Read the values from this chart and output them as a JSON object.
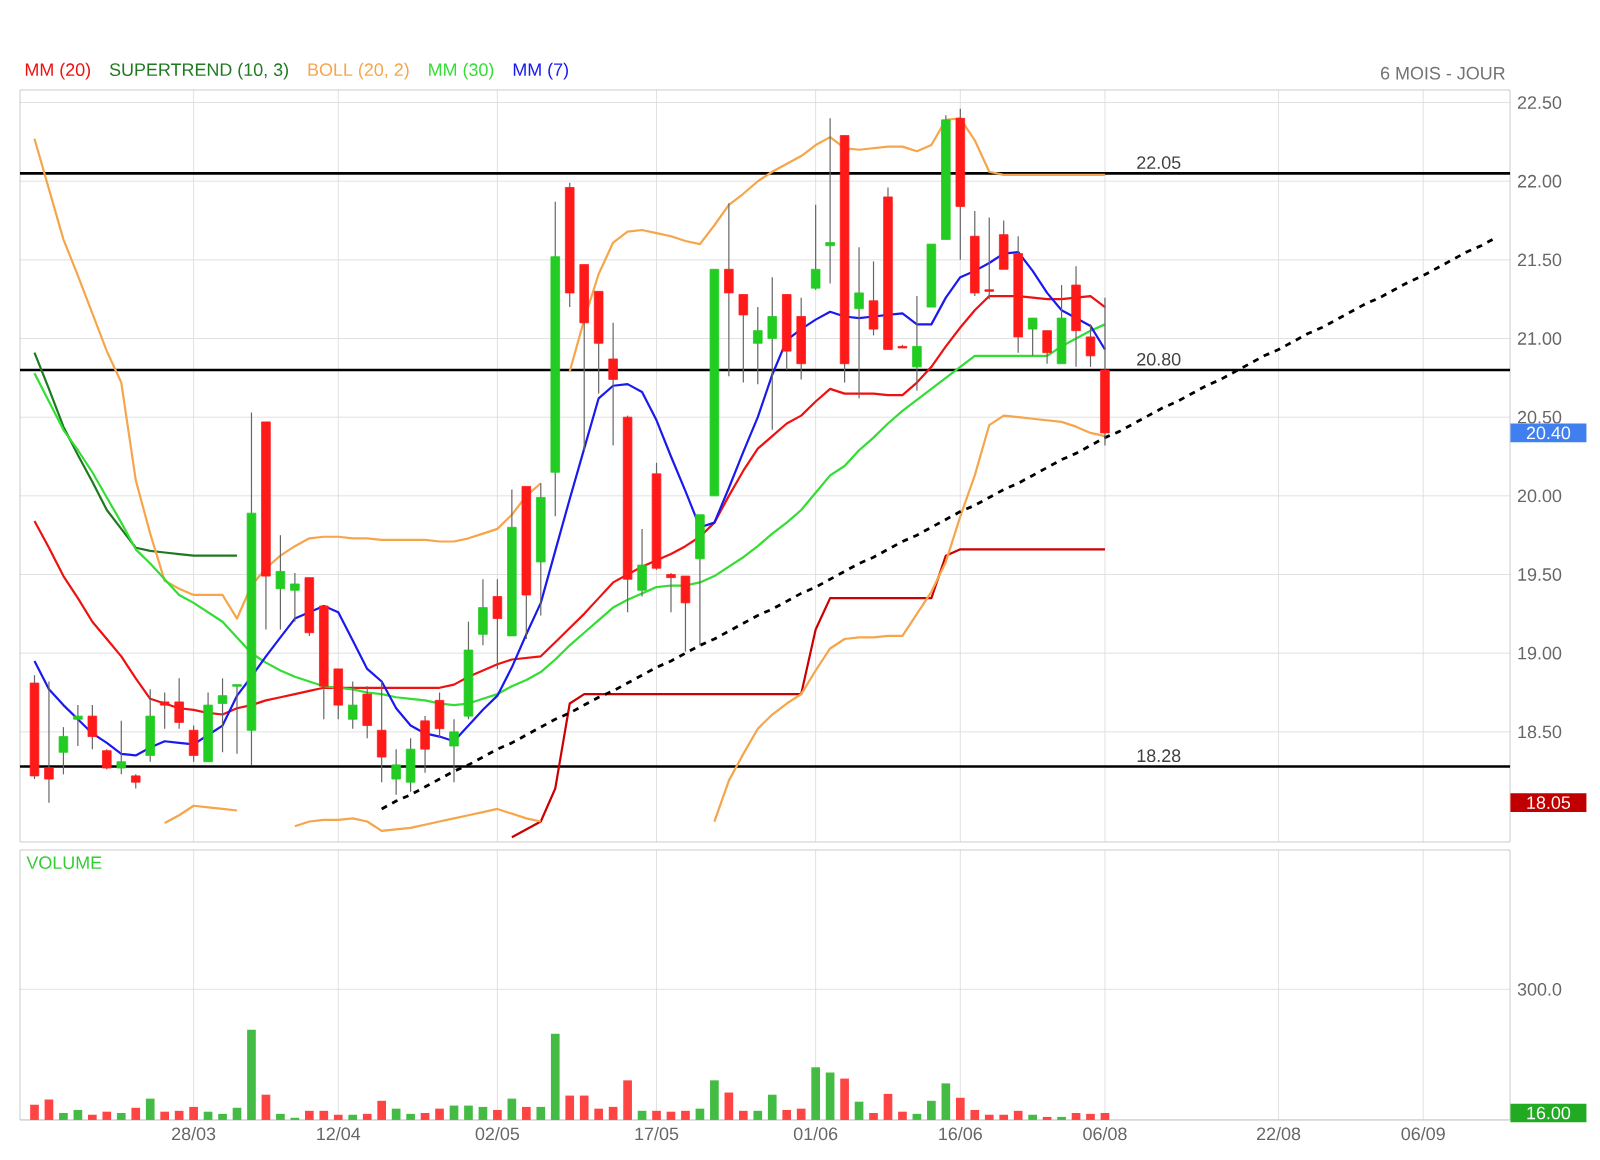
{
  "chart_data": [
    {
      "type": "candlestick",
      "subtitle": "6 MOIS - JOUR",
      "categories": [
        null,
        null,
        null,
        null,
        null,
        null,
        null,
        null,
        null,
        null,
        null,
        null,
        null,
        null,
        null,
        null,
        null,
        null,
        null,
        null,
        null,
        null,
        null,
        null,
        null,
        null,
        null,
        null,
        null,
        null,
        null,
        null,
        null,
        null,
        null,
        null,
        null,
        null,
        null,
        null,
        null,
        null,
        null,
        null,
        null,
        null,
        null,
        null,
        null,
        null,
        null,
        null,
        null,
        null,
        null,
        null,
        null,
        null,
        null,
        null,
        null,
        null,
        null,
        null,
        null,
        null,
        null,
        null,
        null,
        null,
        null,
        null,
        null,
        null,
        null,
        null,
        null,
        null,
        null,
        null,
        null,
        null,
        null,
        null,
        null,
        null,
        null,
        null,
        null,
        null,
        null,
        null,
        null,
        null,
        null,
        null,
        null,
        null,
        null,
        null,
        null,
        null
      ],
      "ohlc": [
        [
          18.81,
          18.86,
          18.2,
          18.22
        ],
        [
          18.27,
          18.82,
          18.05,
          18.2
        ],
        [
          18.37,
          18.53,
          18.23,
          18.47
        ],
        [
          18.58,
          18.67,
          18.41,
          18.6
        ],
        [
          18.6,
          18.67,
          18.39,
          18.47
        ],
        [
          18.38,
          18.39,
          18.26,
          18.27
        ],
        [
          18.27,
          18.57,
          18.23,
          18.31
        ],
        [
          18.22,
          18.23,
          18.14,
          18.18
        ],
        [
          18.35,
          18.77,
          18.31,
          18.6
        ],
        [
          18.69,
          18.75,
          18.52,
          18.67
        ],
        [
          18.69,
          18.84,
          18.52,
          18.56
        ],
        [
          18.51,
          18.54,
          18.31,
          18.35
        ],
        [
          18.31,
          18.75,
          18.31,
          18.67
        ],
        [
          18.68,
          18.84,
          18.37,
          18.73
        ],
        [
          18.79,
          18.8,
          18.36,
          18.8
        ],
        [
          18.51,
          20.53,
          18.29,
          19.89
        ],
        [
          20.47,
          20.47,
          19.15,
          19.49
        ],
        [
          19.41,
          19.75,
          19.15,
          19.52
        ],
        [
          19.4,
          19.51,
          19.2,
          19.44
        ],
        [
          19.48,
          19.48,
          19.11,
          19.13
        ],
        [
          19.3,
          19.3,
          18.58,
          18.79
        ],
        [
          18.9,
          18.9,
          18.58,
          18.67
        ],
        [
          18.58,
          18.82,
          18.52,
          18.67
        ],
        [
          18.74,
          18.79,
          18.46,
          18.54
        ],
        [
          18.51,
          18.82,
          18.18,
          18.34
        ],
        [
          18.2,
          18.39,
          18.1,
          18.29
        ],
        [
          18.18,
          18.46,
          18.12,
          18.39
        ],
        [
          18.57,
          18.6,
          18.24,
          18.39
        ],
        [
          18.7,
          18.75,
          18.46,
          18.52
        ],
        [
          18.41,
          18.58,
          18.18,
          18.5
        ],
        [
          18.6,
          19.2,
          18.58,
          19.02
        ],
        [
          19.12,
          19.47,
          19.05,
          19.29
        ],
        [
          19.36,
          19.47,
          18.9,
          19.22
        ],
        [
          19.11,
          20.04,
          19.11,
          19.8
        ],
        [
          20.06,
          20.06,
          19.09,
          19.37
        ],
        [
          19.58,
          20.08,
          19.24,
          19.99
        ],
        [
          20.15,
          21.87,
          19.87,
          21.52
        ],
        [
          21.96,
          21.99,
          21.2,
          21.29
        ],
        [
          21.47,
          21.47,
          20.29,
          21.1
        ],
        [
          21.3,
          21.3,
          20.65,
          20.97
        ],
        [
          20.87,
          21.1,
          20.32,
          20.74
        ],
        [
          20.5,
          20.51,
          19.26,
          19.47
        ],
        [
          19.4,
          19.79,
          19.36,
          19.56
        ],
        [
          20.14,
          20.21,
          19.53,
          19.54
        ],
        [
          19.5,
          19.51,
          19.26,
          19.48
        ],
        [
          19.49,
          19.49,
          19.01,
          19.32
        ],
        [
          19.6,
          19.88,
          19.05,
          19.88
        ],
        [
          20.0,
          21.44,
          20.0,
          21.44
        ],
        [
          21.44,
          21.86,
          20.76,
          21.29
        ],
        [
          21.28,
          21.28,
          20.72,
          21.15
        ],
        [
          20.97,
          21.2,
          20.71,
          21.05
        ],
        [
          21.0,
          21.39,
          20.42,
          21.14
        ],
        [
          21.28,
          21.28,
          20.8,
          20.92
        ],
        [
          21.14,
          21.26,
          20.74,
          20.84
        ],
        [
          21.32,
          21.85,
          21.31,
          21.44
        ],
        [
          21.59,
          22.4,
          21.35,
          21.61
        ],
        [
          22.29,
          22.29,
          20.72,
          20.84
        ],
        [
          21.19,
          21.58,
          20.62,
          21.29
        ],
        [
          21.24,
          21.49,
          21.02,
          21.06
        ],
        [
          21.9,
          21.96,
          20.93,
          20.93
        ],
        [
          20.95,
          20.96,
          20.94,
          20.94
        ],
        [
          20.82,
          21.27,
          20.67,
          20.95
        ],
        [
          21.2,
          21.6,
          21.2,
          21.6
        ],
        [
          21.63,
          22.42,
          21.63,
          22.39
        ],
        [
          22.4,
          22.46,
          21.5,
          21.84
        ],
        [
          21.65,
          21.81,
          21.27,
          21.29
        ],
        [
          21.31,
          21.77,
          21.25,
          21.3
        ],
        [
          21.66,
          21.75,
          21.44,
          21.44
        ],
        [
          21.54,
          21.65,
          20.91,
          21.01
        ],
        [
          21.06,
          21.13,
          20.89,
          21.13
        ],
        [
          21.05,
          21.05,
          20.84,
          20.91
        ],
        [
          20.84,
          21.34,
          20.84,
          21.13
        ],
        [
          21.34,
          21.46,
          20.82,
          21.05
        ],
        [
          21.01,
          21.09,
          20.82,
          20.89
        ],
        [
          20.8,
          21.26,
          20.32,
          20.4
        ],
        null,
        null,
        null,
        null,
        null,
        null,
        null,
        null,
        null,
        null,
        null,
        null,
        null,
        null,
        null,
        null,
        null,
        null,
        null,
        null,
        null,
        null,
        null,
        null,
        null,
        null,
        null
      ],
      "colors": [
        "#ff1a1a",
        "#ff1a1a",
        "#22cc22",
        "#22cc22",
        "#ff1a1a",
        "#ff1a1a",
        "#22cc22",
        "#ff1a1a",
        "#22cc22",
        "#ff1a1a",
        "#ff1a1a",
        "#ff1a1a",
        "#22cc22",
        "#22cc22",
        "#22cc22",
        "#22cc22",
        "#ff1a1a",
        "#22cc22",
        "#22cc22",
        "#ff1a1a",
        "#ff1a1a",
        "#ff1a1a",
        "#22cc22",
        "#ff1a1a",
        "#ff1a1a",
        "#22cc22",
        "#22cc22",
        "#ff1a1a",
        "#ff1a1a",
        "#22cc22",
        "#22cc22",
        "#22cc22",
        "#ff1a1a",
        "#22cc22",
        "#ff1a1a",
        "#22cc22",
        "#22cc22",
        "#ff1a1a",
        "#ff1a1a",
        "#ff1a1a",
        "#ff1a1a",
        "#ff1a1a",
        "#22cc22",
        "#ff1a1a",
        "#ff1a1a",
        "#ff1a1a",
        "#22cc22",
        "#22cc22",
        "#ff1a1a",
        "#ff1a1a",
        "#22cc22",
        "#22cc22",
        "#ff1a1a",
        "#ff1a1a",
        "#22cc22",
        "#22cc22",
        "#ff1a1a",
        "#22cc22",
        "#ff1a1a",
        "#ff1a1a",
        "#ff1a1a",
        "#22cc22",
        "#22cc22",
        "#22cc22",
        "#ff1a1a",
        "#ff1a1a",
        "#ff1a1a",
        "#ff1a1a",
        "#ff1a1a",
        "#22cc22",
        "#ff1a1a",
        "#22cc22",
        "#ff1a1a",
        "#ff1a1a",
        "#ff1a1a",
        null,
        null,
        null,
        null,
        null,
        null,
        null,
        null,
        null,
        null,
        null,
        null,
        null,
        null,
        null,
        null,
        null,
        null,
        null,
        null,
        null,
        null,
        null,
        null,
        null,
        null,
        null
      ],
      "series": [
        {
          "type": "line",
          "name": "MM (20)",
          "color": "#ee1111",
          "values": [
            19.84,
            19.67,
            19.49,
            19.35,
            19.2,
            19.09,
            18.98,
            18.84,
            18.71,
            18.68,
            18.65,
            18.64,
            18.62,
            18.61,
            18.65,
            18.67,
            18.7,
            18.72,
            18.74,
            18.76,
            18.78,
            18.78,
            18.78,
            18.78,
            18.78,
            18.78,
            18.78,
            18.78,
            18.78,
            18.8,
            18.85,
            18.89,
            18.93,
            18.96,
            18.97,
            18.98,
            19.07,
            19.16,
            19.25,
            19.35,
            19.45,
            19.5,
            19.55,
            19.59,
            19.63,
            19.68,
            19.74,
            19.83,
            20.0,
            20.16,
            20.3,
            20.38,
            20.46,
            20.51,
            20.6,
            20.68,
            20.65,
            20.65,
            20.65,
            20.64,
            20.64,
            20.72,
            20.82,
            20.95,
            21.07,
            21.18,
            21.27,
            21.27,
            21.27,
            21.26,
            21.25,
            21.25,
            21.26,
            21.27,
            21.2,
            null,
            null,
            null,
            null,
            null,
            null,
            null,
            null,
            null,
            null,
            null,
            null,
            null,
            null,
            null,
            null,
            null,
            null,
            null,
            null,
            null,
            null,
            null,
            null,
            null,
            null,
            null
          ]
        },
        {
          "type": "line",
          "name": "SUPERTREND (10, 3)",
          "color": "#1e7a1e",
          "values": [
            20.91,
            20.68,
            20.44,
            20.26,
            20.09,
            19.91,
            19.79,
            19.67,
            19.65,
            19.64,
            19.63,
            19.62,
            19.62,
            19.62,
            19.62,
            null,
            null,
            null,
            null,
            null,
            null,
            null,
            null,
            null,
            null,
            null,
            null,
            null,
            null,
            null,
            null,
            null,
            null,
            null,
            null,
            null,
            null,
            null,
            null,
            null,
            null,
            null,
            null,
            null,
            null,
            null,
            null,
            null,
            null,
            null,
            null,
            null,
            null,
            null,
            null,
            null,
            null,
            null,
            null,
            null,
            null,
            null,
            null,
            null,
            null,
            null,
            null,
            null,
            null,
            null,
            null,
            null,
            null,
            null,
            null,
            null,
            null,
            null,
            null,
            null,
            null,
            null,
            null,
            null,
            null,
            null,
            null,
            null,
            null,
            null,
            null,
            null,
            null,
            null,
            null,
            null,
            null,
            null,
            null,
            null,
            null,
            null
          ]
        },
        {
          "type": "line",
          "name": "BOLL (20, 2)",
          "color": "#f7a54a",
          "values": [
            22.27,
            21.95,
            21.63,
            21.4,
            21.16,
            20.92,
            20.72,
            20.1,
            19.76,
            19.46,
            19.41,
            19.37,
            19.37,
            19.37,
            19.22,
            19.43,
            19.54,
            19.62,
            19.68,
            19.73,
            19.74,
            19.74,
            19.73,
            19.73,
            19.72,
            19.72,
            19.72,
            19.72,
            19.71,
            19.71,
            19.73,
            19.76,
            19.79,
            19.88,
            20.0,
            20.08,
            null,
            20.79,
            21.12,
            21.41,
            21.61,
            21.68,
            21.69,
            21.67,
            21.65,
            21.62,
            21.6,
            21.72,
            21.85,
            21.92,
            22.0,
            22.06,
            22.11,
            22.16,
            22.23,
            22.28,
            22.21,
            22.2,
            22.21,
            22.22,
            22.22,
            22.19,
            22.23,
            22.39,
            22.4,
            22.26,
            22.06,
            22.04,
            22.04,
            22.04,
            22.04,
            22.04,
            22.04,
            22.04,
            22.04,
            null,
            null,
            null,
            null,
            null,
            null,
            null,
            null,
            null,
            null,
            null,
            null,
            null,
            null,
            null,
            null,
            null,
            null,
            null,
            null,
            null,
            null,
            null,
            null,
            null,
            null,
            null
          ]
        },
        {
          "type": "line",
          "name": "MM (30)",
          "color": "#33dd33",
          "values": [
            20.78,
            20.6,
            20.42,
            20.29,
            20.15,
            19.99,
            19.83,
            19.66,
            19.57,
            19.47,
            19.37,
            19.32,
            19.26,
            19.2,
            19.1,
            19.0,
            18.94,
            18.89,
            18.85,
            18.82,
            18.79,
            18.78,
            18.77,
            18.75,
            18.74,
            18.72,
            18.71,
            18.7,
            18.68,
            18.67,
            18.68,
            18.71,
            18.74,
            18.79,
            18.83,
            18.88,
            18.96,
            19.05,
            19.13,
            19.21,
            19.29,
            19.34,
            19.38,
            19.42,
            19.43,
            19.43,
            19.45,
            19.49,
            19.55,
            19.61,
            19.68,
            19.76,
            19.83,
            19.91,
            20.02,
            20.13,
            20.19,
            20.29,
            20.37,
            20.46,
            20.54,
            20.61,
            20.68,
            20.75,
            20.82,
            20.89,
            20.89,
            20.89,
            20.89,
            20.89,
            20.89,
            20.95,
            21.0,
            21.05,
            21.09,
            null,
            null,
            null,
            null,
            null,
            null,
            null,
            null,
            null,
            null,
            null,
            null,
            null,
            null,
            null,
            null,
            null,
            null,
            null,
            null,
            null,
            null,
            null,
            null,
            null,
            null,
            null
          ]
        },
        {
          "type": "line",
          "name": "MM (7)",
          "color": "#1a1aee",
          "values": [
            18.95,
            18.77,
            18.67,
            18.58,
            18.49,
            18.43,
            18.36,
            18.35,
            18.4,
            18.44,
            18.43,
            18.42,
            18.48,
            18.54,
            18.73,
            18.85,
            18.98,
            19.1,
            19.22,
            19.26,
            19.3,
            19.26,
            19.08,
            18.9,
            18.82,
            18.65,
            18.54,
            18.49,
            18.47,
            18.44,
            18.54,
            18.64,
            18.73,
            18.91,
            19.12,
            19.32,
            19.65,
            19.98,
            20.3,
            20.62,
            20.7,
            20.71,
            20.66,
            20.48,
            20.25,
            20.03,
            19.8,
            19.83,
            20.05,
            20.28,
            20.5,
            20.77,
            20.99,
            21.06,
            21.12,
            21.17,
            21.14,
            21.13,
            21.14,
            21.15,
            21.16,
            21.09,
            21.09,
            21.26,
            21.39,
            21.43,
            21.48,
            21.54,
            21.55,
            21.43,
            21.29,
            21.18,
            21.13,
            21.08,
            20.93,
            null,
            null,
            null,
            null,
            null,
            null,
            null,
            null,
            null,
            null,
            null,
            null,
            null,
            null,
            null,
            null,
            null,
            null,
            null,
            null,
            null,
            null,
            null,
            null,
            null,
            null,
            null
          ]
        },
        {
          "type": "line",
          "color": "#cc0000",
          "values": [
            null,
            null,
            null,
            null,
            null,
            null,
            null,
            null,
            null,
            null,
            null,
            null,
            null,
            null,
            null,
            null,
            null,
            null,
            null,
            null,
            null,
            null,
            null,
            null,
            null,
            null,
            null,
            null,
            null,
            null,
            null,
            null,
            null,
            17.83,
            17.88,
            17.93,
            18.14,
            18.68,
            18.74,
            18.74,
            18.74,
            18.74,
            18.74,
            18.74,
            18.74,
            18.74,
            18.74,
            18.74,
            18.74,
            18.74,
            18.74,
            18.74,
            18.74,
            18.74,
            19.15,
            19.35,
            19.35,
            19.35,
            19.35,
            19.35,
            19.35,
            19.35,
            19.35,
            19.62,
            19.66,
            19.66,
            19.66,
            19.66,
            19.66,
            19.66,
            19.66,
            19.66,
            19.66,
            19.66,
            19.66,
            null,
            null,
            null,
            null,
            null,
            null,
            null,
            null,
            null,
            null,
            null,
            null,
            null,
            null,
            null,
            null,
            null,
            null,
            null,
            null,
            null,
            null,
            null,
            null,
            null,
            null,
            null
          ]
        },
        {
          "type": "line",
          "color": "#f7a54a",
          "values": [
            null,
            null,
            null,
            null,
            null,
            null,
            null,
            null,
            null,
            17.92,
            17.97,
            18.03,
            18.02,
            18.01,
            18.0,
            null,
            null,
            null,
            17.9,
            17.93,
            17.94,
            17.94,
            17.95,
            17.93,
            17.87,
            17.88,
            17.89,
            17.91,
            17.93,
            17.95,
            17.97,
            17.99,
            18.01,
            17.98,
            17.95,
            17.93,
            null,
            null,
            null,
            null,
            null,
            null,
            null,
            null,
            null,
            null,
            null,
            17.93,
            18.19,
            18.36,
            18.52,
            18.61,
            18.68,
            18.74,
            18.89,
            19.03,
            19.09,
            19.1,
            19.1,
            19.11,
            19.11,
            19.25,
            19.39,
            19.58,
            19.87,
            20.13,
            20.45,
            20.51,
            20.5,
            20.49,
            20.48,
            20.47,
            20.44,
            20.4,
            20.38,
            null,
            null,
            null,
            null,
            null,
            null,
            null,
            null,
            null,
            null,
            null,
            null,
            null,
            null,
            null,
            null,
            null,
            null,
            null,
            null,
            null,
            null,
            null,
            null,
            null,
            null,
            null
          ]
        },
        {
          "type": "line",
          "color": "#000000",
          "line_style": "dashed",
          "values": [
            null,
            null,
            null,
            null,
            null,
            null,
            null,
            null,
            null,
            null,
            null,
            null,
            null,
            null,
            null,
            null,
            null,
            null,
            null,
            null,
            null,
            null,
            null,
            null,
            18.01,
            18.06,
            18.1,
            18.15,
            18.2,
            18.25,
            18.29,
            18.34,
            18.39,
            18.43,
            18.48,
            18.53,
            18.58,
            18.62,
            18.67,
            18.72,
            18.76,
            18.81,
            18.86,
            18.91,
            18.95,
            19.0,
            19.05,
            19.09,
            19.14,
            19.19,
            19.24,
            19.28,
            19.33,
            19.38,
            19.42,
            19.47,
            19.52,
            19.57,
            19.61,
            19.66,
            19.71,
            19.75,
            19.8,
            19.85,
            19.9,
            19.94,
            19.99,
            20.04,
            20.08,
            20.13,
            20.18,
            20.23,
            20.27,
            20.32,
            20.37,
            20.41,
            20.46,
            20.51,
            20.56,
            20.6,
            20.65,
            20.7,
            20.74,
            20.79,
            20.84,
            20.89,
            20.93,
            20.98,
            21.03,
            21.07,
            21.12,
            21.17,
            21.22,
            21.26,
            21.31,
            21.36,
            21.4,
            21.45,
            21.5,
            21.55,
            21.59,
            21.64
          ]
        }
      ],
      "ref_lines": [
        {
          "axis": "y",
          "value": 22.05,
          "label": "22.05"
        },
        {
          "axis": "y",
          "value": 20.8,
          "label": "20.80"
        },
        {
          "axis": "y",
          "value": 18.28,
          "label": "18.28"
        }
      ],
      "annotations": [
        "20.40",
        "18.05"
      ],
      "ylim": [
        17.8,
        22.58
      ],
      "yticks": [
        {
          "value": 18.5,
          "label": "18.50"
        },
        {
          "value": 19,
          "label": "19.00"
        },
        {
          "value": 19.5,
          "label": "19.50"
        },
        {
          "value": 20,
          "label": "20.00"
        },
        {
          "value": 20.5,
          "label": "20.50"
        },
        {
          "value": 21,
          "label": "21.00"
        },
        {
          "value": 21.5,
          "label": "21.50"
        },
        {
          "value": 22,
          "label": "22.00"
        },
        {
          "value": 22.5,
          "label": "22.50"
        }
      ],
      "grid": true,
      "legend": "top left",
      "tick_labels": "y"
    },
    {
      "type": "bar",
      "title": "VOLUME",
      "categories": [
        null,
        null,
        null,
        null,
        null,
        null,
        null,
        null,
        null,
        null,
        null,
        "28/03",
        null,
        null,
        null,
        null,
        null,
        null,
        null,
        null,
        null,
        "12/04",
        null,
        null,
        null,
        null,
        null,
        null,
        null,
        null,
        null,
        null,
        "02/05",
        null,
        null,
        null,
        null,
        null,
        null,
        null,
        null,
        null,
        null,
        "17/05",
        null,
        null,
        null,
        null,
        null,
        null,
        null,
        null,
        null,
        null,
        "01/06",
        null,
        null,
        null,
        null,
        null,
        null,
        null,
        null,
        null,
        "16/06",
        null,
        null,
        null,
        null,
        null,
        null,
        null,
        null,
        null,
        "06/08",
        null,
        null,
        null,
        null,
        null,
        null,
        null,
        null,
        null,
        null,
        null,
        "22/08",
        null,
        null,
        null,
        null,
        null,
        null,
        null,
        null,
        null,
        "06/09",
        null,
        null,
        null,
        null,
        null
      ],
      "values": [
        35,
        47,
        16,
        23,
        12,
        19,
        16,
        28,
        49,
        19,
        21,
        30,
        19,
        14,
        28,
        207,
        58,
        14,
        5,
        21,
        21,
        12,
        12,
        14,
        44,
        26,
        14,
        16,
        26,
        33,
        33,
        30,
        23,
        49,
        30,
        30,
        198,
        56,
        56,
        26,
        30,
        91,
        21,
        21,
        19,
        21,
        26,
        91,
        63,
        21,
        21,
        58,
        23,
        26,
        121,
        109,
        95,
        42,
        16,
        60,
        19,
        14,
        44,
        84,
        51,
        23,
        12,
        12,
        21,
        12,
        7,
        7,
        16,
        14,
        16,
        null,
        null,
        null,
        null,
        null,
        null,
        null,
        null,
        null,
        null,
        null,
        null,
        null,
        null,
        null,
        null,
        null,
        null,
        null,
        null,
        null,
        null,
        null,
        null,
        null,
        null,
        null
      ],
      "colors": [
        "#ff4444",
        "#ff4444",
        "#44bb44",
        "#44bb44",
        "#ff4444",
        "#ff4444",
        "#44bb44",
        "#ff4444",
        "#44bb44",
        "#ff4444",
        "#ff4444",
        "#ff4444",
        "#44bb44",
        "#44bb44",
        "#44bb44",
        "#44bb44",
        "#ff4444",
        "#44bb44",
        "#44bb44",
        "#ff4444",
        "#ff4444",
        "#ff4444",
        "#44bb44",
        "#ff4444",
        "#ff4444",
        "#44bb44",
        "#44bb44",
        "#ff4444",
        "#ff4444",
        "#44bb44",
        "#44bb44",
        "#44bb44",
        "#ff4444",
        "#44bb44",
        "#ff4444",
        "#44bb44",
        "#44bb44",
        "#ff4444",
        "#ff4444",
        "#ff4444",
        "#ff4444",
        "#ff4444",
        "#44bb44",
        "#ff4444",
        "#ff4444",
        "#ff4444",
        "#44bb44",
        "#44bb44",
        "#ff4444",
        "#ff4444",
        "#44bb44",
        "#44bb44",
        "#ff4444",
        "#ff4444",
        "#44bb44",
        "#44bb44",
        "#ff4444",
        "#44bb44",
        "#ff4444",
        "#ff4444",
        "#ff4444",
        "#44bb44",
        "#44bb44",
        "#44bb44",
        "#ff4444",
        "#ff4444",
        "#ff4444",
        "#ff4444",
        "#ff4444",
        "#44bb44",
        "#ff4444",
        "#44bb44",
        "#ff4444",
        "#ff4444",
        "#ff4444",
        null,
        null,
        null,
        null,
        null,
        null,
        null,
        null,
        null,
        null,
        null,
        null,
        null,
        null,
        null,
        null,
        null,
        null,
        null,
        null,
        null,
        null,
        null,
        null,
        null,
        null,
        null
      ],
      "annotations": [
        "16.00"
      ],
      "ylim": [
        0,
        620
      ],
      "yticks": [
        {
          "value": 0,
          "label": null
        },
        {
          "value": 300,
          "label": "300.0"
        }
      ],
      "grid": true
    }
  ]
}
